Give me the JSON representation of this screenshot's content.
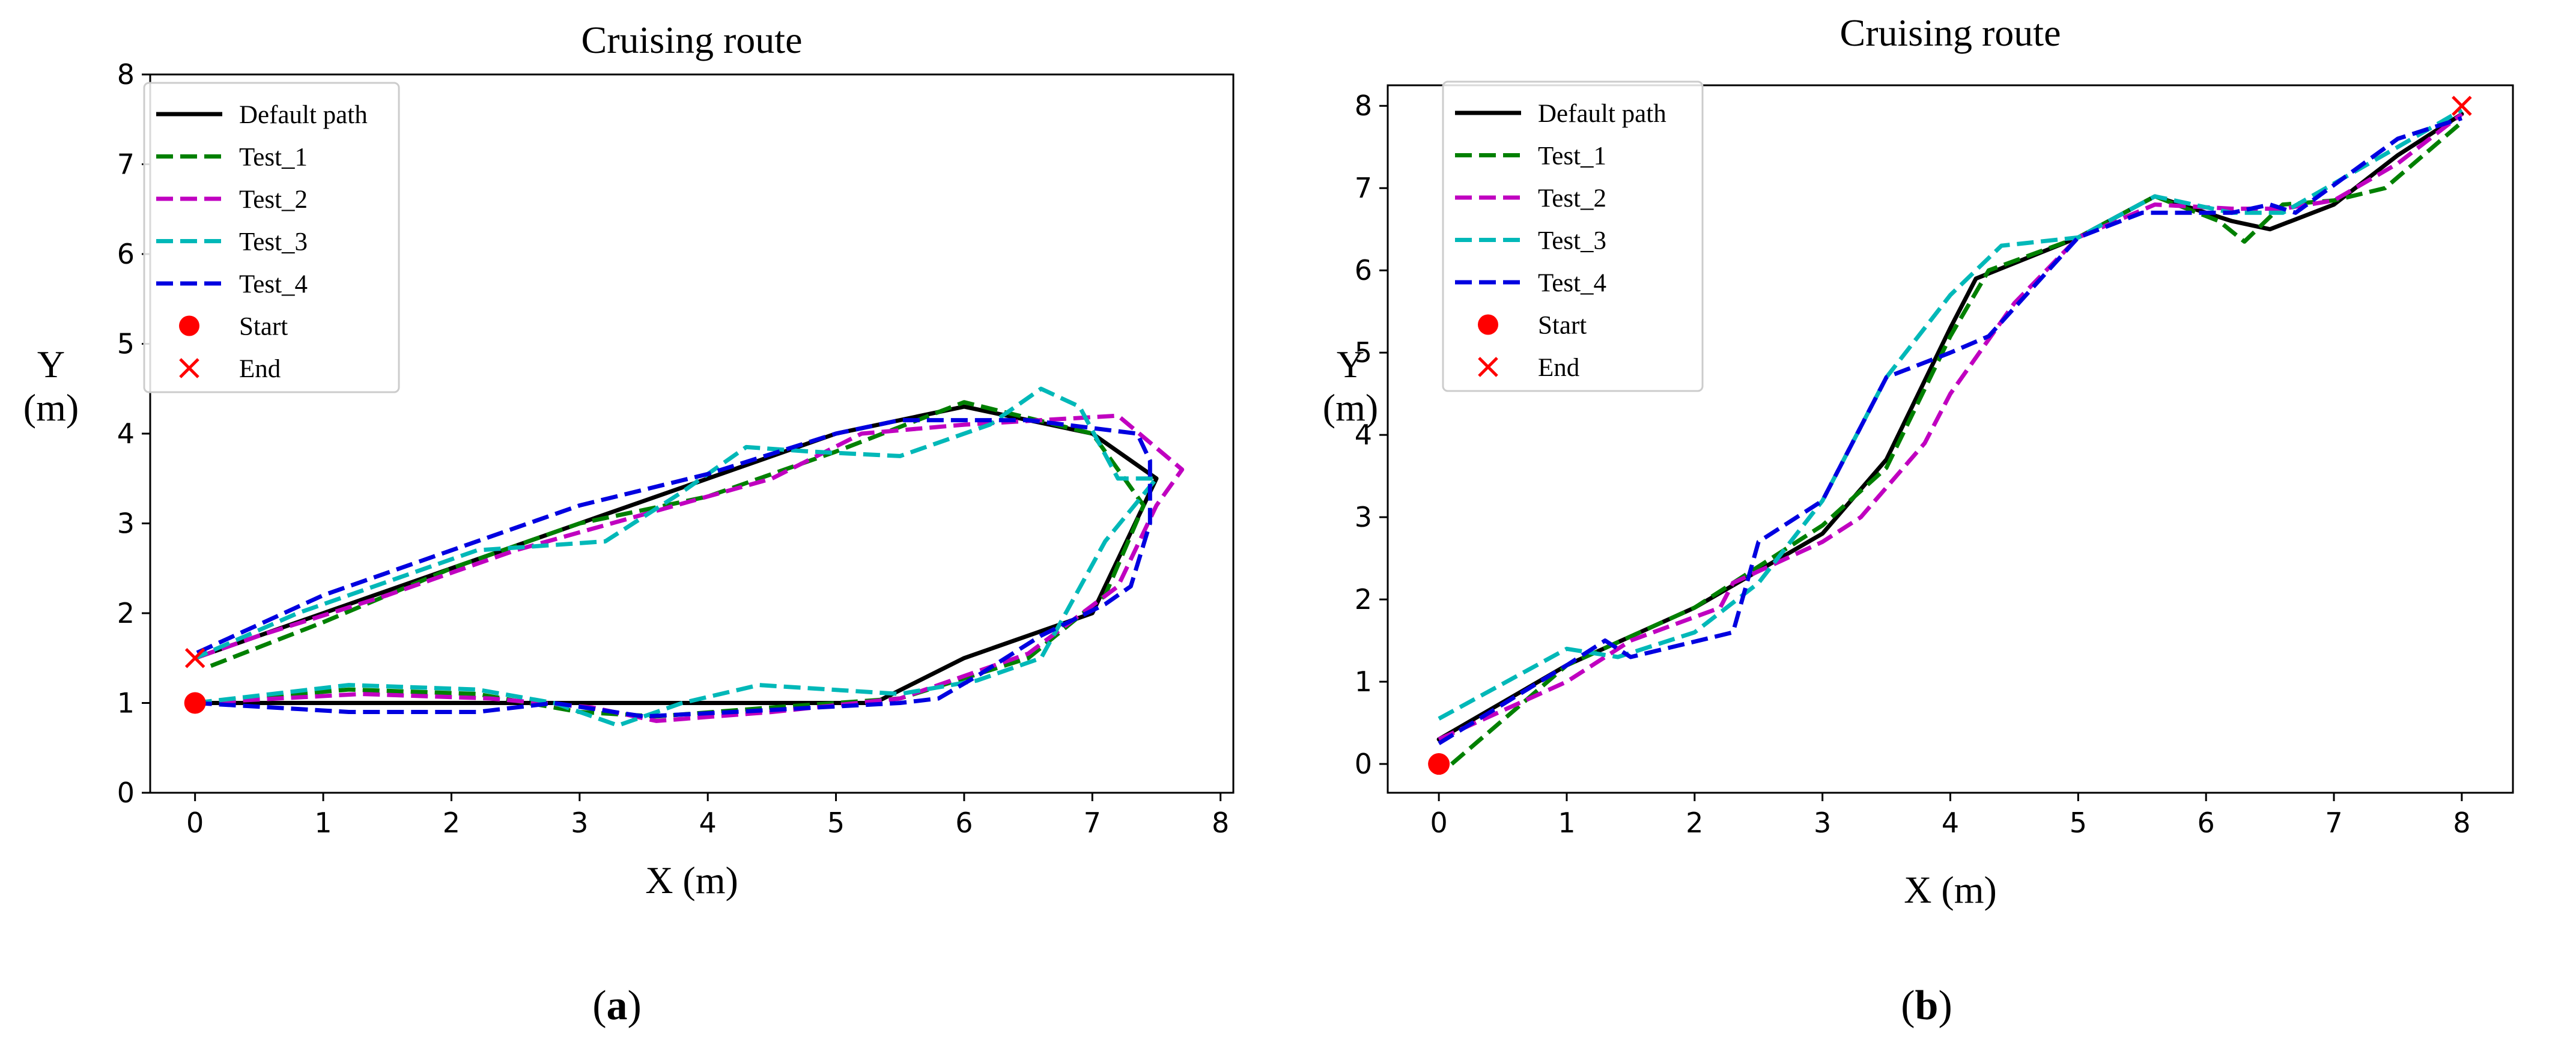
{
  "chart_data": [
    {
      "type": "line",
      "title": "Cruising route",
      "xlabel": "X (m)",
      "ylabel_line1": "Y",
      "ylabel_line2": "(m)",
      "panel_label_open": "(",
      "panel_label_letter": "a",
      "panel_label_close": ")",
      "xlim": [
        -0.35,
        8.1
      ],
      "ylim": [
        0,
        8
      ],
      "xticks": [
        "0",
        "1",
        "2",
        "3",
        "4",
        "5",
        "6",
        "7",
        "8"
      ],
      "yticks": [
        "0",
        "1",
        "2",
        "3",
        "4",
        "5",
        "6",
        "7",
        "8"
      ],
      "grid": false,
      "legend_position": "top-left",
      "series": [
        {
          "name": "Default path",
          "style": "solid",
          "color": "#000000",
          "points": [
            [
              0,
              1
            ],
            [
              2.5,
              1
            ],
            [
              5.3,
              1
            ],
            [
              6,
              1.5
            ],
            [
              7,
              2
            ],
            [
              7.5,
              3.5
            ],
            [
              7,
              4
            ],
            [
              6,
              4.3
            ],
            [
              5,
              4
            ],
            [
              4,
              3.5
            ],
            [
              3,
              3
            ],
            [
              2,
              2.5
            ],
            [
              1,
              2
            ],
            [
              0,
              1.5
            ]
          ]
        },
        {
          "name": "Test_1",
          "style": "dashed",
          "color": "#008000",
          "points": [
            [
              0,
              1
            ],
            [
              1.2,
              1.15
            ],
            [
              2.2,
              1.1
            ],
            [
              3,
              0.9
            ],
            [
              3.6,
              0.85
            ],
            [
              4.5,
              0.95
            ],
            [
              5.5,
              1.05
            ],
            [
              6.5,
              1.5
            ],
            [
              7.1,
              2.2
            ],
            [
              7.4,
              3.2
            ],
            [
              7,
              4
            ],
            [
              6,
              4.35
            ],
            [
              5,
              3.8
            ],
            [
              4,
              3.3
            ],
            [
              3,
              3
            ],
            [
              2,
              2.5
            ],
            [
              1,
              1.9
            ],
            [
              0.1,
              1.4
            ]
          ]
        },
        {
          "name": "Test_2",
          "style": "dashed",
          "color": "#c000c0",
          "points": [
            [
              0,
              1
            ],
            [
              1.3,
              1.1
            ],
            [
              2.3,
              1.05
            ],
            [
              3.1,
              0.95
            ],
            [
              3.6,
              0.8
            ],
            [
              4.5,
              0.9
            ],
            [
              5.5,
              1.05
            ],
            [
              6.5,
              1.55
            ],
            [
              7.2,
              2.3
            ],
            [
              7.5,
              3.2
            ],
            [
              7.7,
              3.6
            ],
            [
              7.2,
              4.2
            ],
            [
              6,
              4.1
            ],
            [
              5.2,
              4
            ],
            [
              4.5,
              3.5
            ],
            [
              3.5,
              3.1
            ],
            [
              2.5,
              2.7
            ],
            [
              1.5,
              2.2
            ],
            [
              0.5,
              1.75
            ],
            [
              0,
              1.5
            ]
          ]
        },
        {
          "name": "Test_3",
          "style": "dashed",
          "color": "#00b8b8",
          "points": [
            [
              0,
              1
            ],
            [
              1.2,
              1.2
            ],
            [
              2.2,
              1.15
            ],
            [
              2.8,
              1
            ],
            [
              3.3,
              0.75
            ],
            [
              3.8,
              1
            ],
            [
              4.4,
              1.2
            ],
            [
              5.5,
              1.1
            ],
            [
              6.1,
              1.25
            ],
            [
              6.6,
              1.5
            ],
            [
              7.1,
              2.8
            ],
            [
              7.5,
              3.5
            ],
            [
              7.2,
              3.5
            ],
            [
              6.9,
              4.3
            ],
            [
              6.6,
              4.5
            ],
            [
              6.2,
              4.1
            ],
            [
              5.5,
              3.75
            ],
            [
              4.8,
              3.8
            ],
            [
              4.3,
              3.85
            ],
            [
              3.8,
              3.35
            ],
            [
              3.2,
              2.8
            ],
            [
              2.7,
              2.75
            ],
            [
              2.2,
              2.7
            ],
            [
              1.5,
              2.35
            ],
            [
              0.8,
              2
            ],
            [
              0,
              1.5
            ]
          ]
        },
        {
          "name": "Test_4",
          "style": "dashed",
          "color": "#0000e0",
          "points": [
            [
              0,
              1
            ],
            [
              1.2,
              0.9
            ],
            [
              2.2,
              0.9
            ],
            [
              2.8,
              1
            ],
            [
              3.5,
              0.85
            ],
            [
              4.2,
              0.9
            ],
            [
              5.5,
              1
            ],
            [
              5.8,
              1.05
            ],
            [
              6.1,
              1.3
            ],
            [
              6.6,
              1.75
            ],
            [
              7.1,
              2.1
            ],
            [
              7.3,
              2.3
            ],
            [
              7.45,
              3
            ],
            [
              7.45,
              3.7
            ],
            [
              7.35,
              4
            ],
            [
              6.5,
              4.15
            ],
            [
              5.5,
              4.15
            ],
            [
              5,
              4
            ],
            [
              4,
              3.55
            ],
            [
              3,
              3.2
            ],
            [
              2,
              2.7
            ],
            [
              1,
              2.2
            ],
            [
              0,
              1.55
            ]
          ]
        },
        {
          "name": "Start",
          "style": "marker-circle",
          "color": "#ff0000",
          "points": [
            [
              0,
              1
            ]
          ]
        },
        {
          "name": "End",
          "style": "marker-x",
          "color": "#ff0000",
          "points": [
            [
              0,
              1.5
            ]
          ]
        }
      ]
    },
    {
      "type": "line",
      "title": "Cruising route",
      "xlabel": "X (m)",
      "ylabel_line1": "Y",
      "ylabel_line2": "(m)",
      "panel_label_open": "(",
      "panel_label_letter": "b",
      "panel_label_close": ")",
      "xlim": [
        -0.4,
        8.4
      ],
      "ylim": [
        -0.35,
        8.25
      ],
      "xticks": [
        "0",
        "1",
        "2",
        "3",
        "4",
        "5",
        "6",
        "7",
        "8"
      ],
      "yticks": [
        "0",
        "1",
        "2",
        "3",
        "4",
        "5",
        "6",
        "7",
        "8"
      ],
      "grid": false,
      "legend_position": "top-left",
      "series": [
        {
          "name": "Default path",
          "style": "solid",
          "color": "#000000",
          "points": [
            [
              0,
              0.3
            ],
            [
              1,
              1.2
            ],
            [
              2,
              1.9
            ],
            [
              3,
              2.8
            ],
            [
              3.5,
              3.7
            ],
            [
              4,
              5.3
            ],
            [
              4.2,
              5.9
            ],
            [
              5,
              6.4
            ],
            [
              5.6,
              6.9
            ],
            [
              6.2,
              6.6
            ],
            [
              6.5,
              6.5
            ],
            [
              7,
              6.8
            ],
            [
              7.5,
              7.4
            ],
            [
              8,
              7.9
            ]
          ]
        },
        {
          "name": "Test_1",
          "style": "dashed",
          "color": "#008000",
          "points": [
            [
              0.1,
              0
            ],
            [
              1,
              1.2
            ],
            [
              2,
              1.9
            ],
            [
              3,
              2.9
            ],
            [
              3.5,
              3.6
            ],
            [
              4,
              5.2
            ],
            [
              4.3,
              6
            ],
            [
              5,
              6.4
            ],
            [
              5.6,
              6.9
            ],
            [
              6.1,
              6.6
            ],
            [
              6.3,
              6.35
            ],
            [
              6.6,
              6.8
            ],
            [
              7,
              6.85
            ],
            [
              7.4,
              7
            ],
            [
              8,
              7.8
            ]
          ]
        },
        {
          "name": "Test_2",
          "style": "dashed",
          "color": "#c000c0",
          "points": [
            [
              0,
              0.3
            ],
            [
              1,
              1
            ],
            [
              1.5,
              1.5
            ],
            [
              2.2,
              1.9
            ],
            [
              2.3,
              2.2
            ],
            [
              3,
              2.7
            ],
            [
              3.3,
              3
            ],
            [
              3.8,
              3.9
            ],
            [
              4,
              4.5
            ],
            [
              4.5,
              5.6
            ],
            [
              5,
              6.4
            ],
            [
              5.6,
              6.8
            ],
            [
              6.2,
              6.75
            ],
            [
              6.6,
              6.75
            ],
            [
              7,
              6.85
            ],
            [
              7.5,
              7.3
            ],
            [
              8,
              7.9
            ]
          ]
        },
        {
          "name": "Test_3",
          "style": "dashed",
          "color": "#00b8b8",
          "points": [
            [
              0,
              0.55
            ],
            [
              1,
              1.4
            ],
            [
              1.4,
              1.3
            ],
            [
              2,
              1.6
            ],
            [
              2.5,
              2.2
            ],
            [
              3,
              3.2
            ],
            [
              3.5,
              4.7
            ],
            [
              4,
              5.7
            ],
            [
              4.4,
              6.3
            ],
            [
              5,
              6.4
            ],
            [
              5.6,
              6.9
            ],
            [
              6.2,
              6.7
            ],
            [
              6.6,
              6.7
            ],
            [
              7.5,
              7.5
            ],
            [
              8,
              7.95
            ]
          ]
        },
        {
          "name": "Test_4",
          "style": "dashed",
          "color": "#0000e0",
          "points": [
            [
              0,
              0.25
            ],
            [
              1,
              1.2
            ],
            [
              1.3,
              1.5
            ],
            [
              1.5,
              1.3
            ],
            [
              2.3,
              1.6
            ],
            [
              2.5,
              2.7
            ],
            [
              3,
              3.2
            ],
            [
              3.5,
              4.7
            ],
            [
              4,
              5
            ],
            [
              4.3,
              5.2
            ],
            [
              5,
              6.4
            ],
            [
              5.5,
              6.7
            ],
            [
              6.2,
              6.7
            ],
            [
              6.5,
              6.8
            ],
            [
              6.7,
              6.7
            ],
            [
              7.5,
              7.6
            ],
            [
              8,
              7.85
            ]
          ]
        },
        {
          "name": "Start",
          "style": "marker-circle",
          "color": "#ff0000",
          "points": [
            [
              0,
              0
            ]
          ]
        },
        {
          "name": "End",
          "style": "marker-x",
          "color": "#ff0000",
          "points": [
            [
              8,
              8
            ]
          ]
        }
      ]
    }
  ]
}
